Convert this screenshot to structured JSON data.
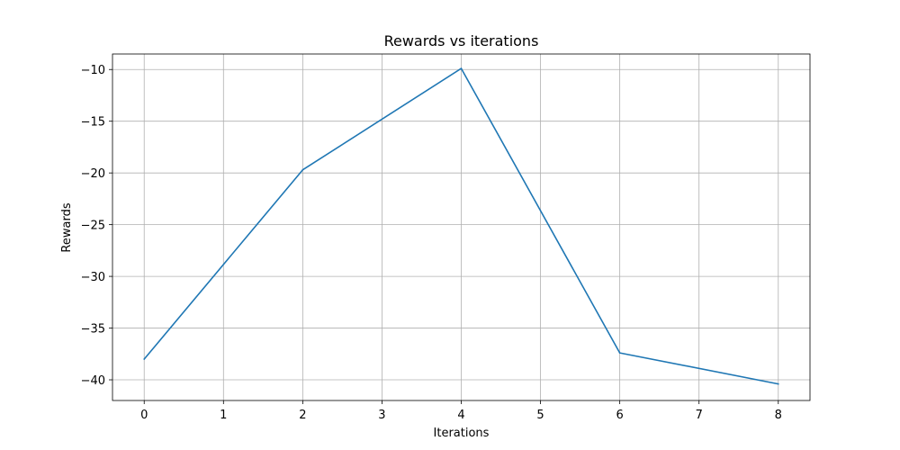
{
  "chart_data": {
    "type": "line",
    "title": "Rewards vs iterations",
    "xlabel": "Iterations",
    "ylabel": "Rewards",
    "x": [
      0,
      2,
      4,
      6,
      8
    ],
    "series": [
      {
        "values": [
          -38.0,
          -19.7,
          -9.9,
          -37.4,
          -40.4
        ],
        "color": "#1f77b4"
      }
    ],
    "xlim": [
      -0.4,
      8.4
    ],
    "ylim": [
      -42,
      -8.5
    ],
    "x_ticks": [
      0,
      1,
      2,
      3,
      4,
      5,
      6,
      7,
      8
    ],
    "x_tick_labels": [
      "0",
      "1",
      "2",
      "3",
      "4",
      "5",
      "6",
      "7",
      "8"
    ],
    "y_ticks": [
      -10,
      -15,
      -20,
      -25,
      -30,
      -35,
      -40
    ],
    "y_tick_labels": [
      "−10",
      "−15",
      "−20",
      "−25",
      "−30",
      "−35",
      "−40"
    ],
    "grid": true,
    "legend": "none"
  }
}
